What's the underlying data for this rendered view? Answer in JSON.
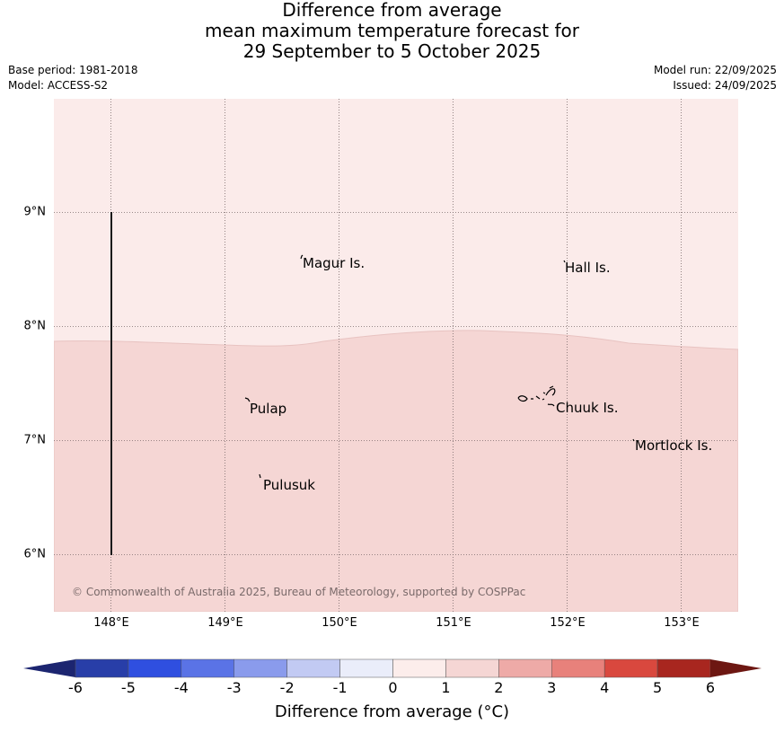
{
  "title": {
    "line1": "Difference from average",
    "line2": "mean maximum temperature forecast for",
    "line3": "29 September to 5 October 2025"
  },
  "meta": {
    "base_period": "Base period: 1981-2018",
    "model": "Model: ACCESS-S2",
    "model_run": "Model run: 22/09/2025",
    "issued": "Issued: 24/09/2025"
  },
  "map": {
    "lat_labels": [
      "9°N",
      "8°N",
      "7°N",
      "6°N"
    ],
    "lon_labels": [
      "148°E",
      "149°E",
      "150°E",
      "151°E",
      "152°E",
      "153°E"
    ],
    "places": {
      "magur": "Magur Is.",
      "hall": "Hall Is.",
      "pulap": "Pulap",
      "chuuk": "Chuuk Is.",
      "mortlock": "Mortlock Is.",
      "pulusuk": "Pulusuk"
    },
    "copyright": "© Commonwealth of Australia 2025, Bureau of Meteorology, supported by COSPPac",
    "region_colors": {
      "north_0_to_1": "#fbebea",
      "south_1_to_2": "#f5d6d4"
    }
  },
  "colorbar": {
    "title": "Difference from average (°C)",
    "ticks": [
      "-6",
      "-5",
      "-4",
      "-3",
      "-2",
      "-1",
      "0",
      "1",
      "2",
      "3",
      "4",
      "5",
      "6"
    ],
    "colors": [
      "#283ea8",
      "#2f4fe0",
      "#5a73e6",
      "#8a9bec",
      "#c2caf3",
      "#eaedfa",
      "#fcedeb",
      "#f5d6d4",
      "#eeaaa7",
      "#e8817b",
      "#d9483e",
      "#a8261f"
    ],
    "extend_low_color": "#1c2570",
    "extend_high_color": "#6d1712"
  }
}
